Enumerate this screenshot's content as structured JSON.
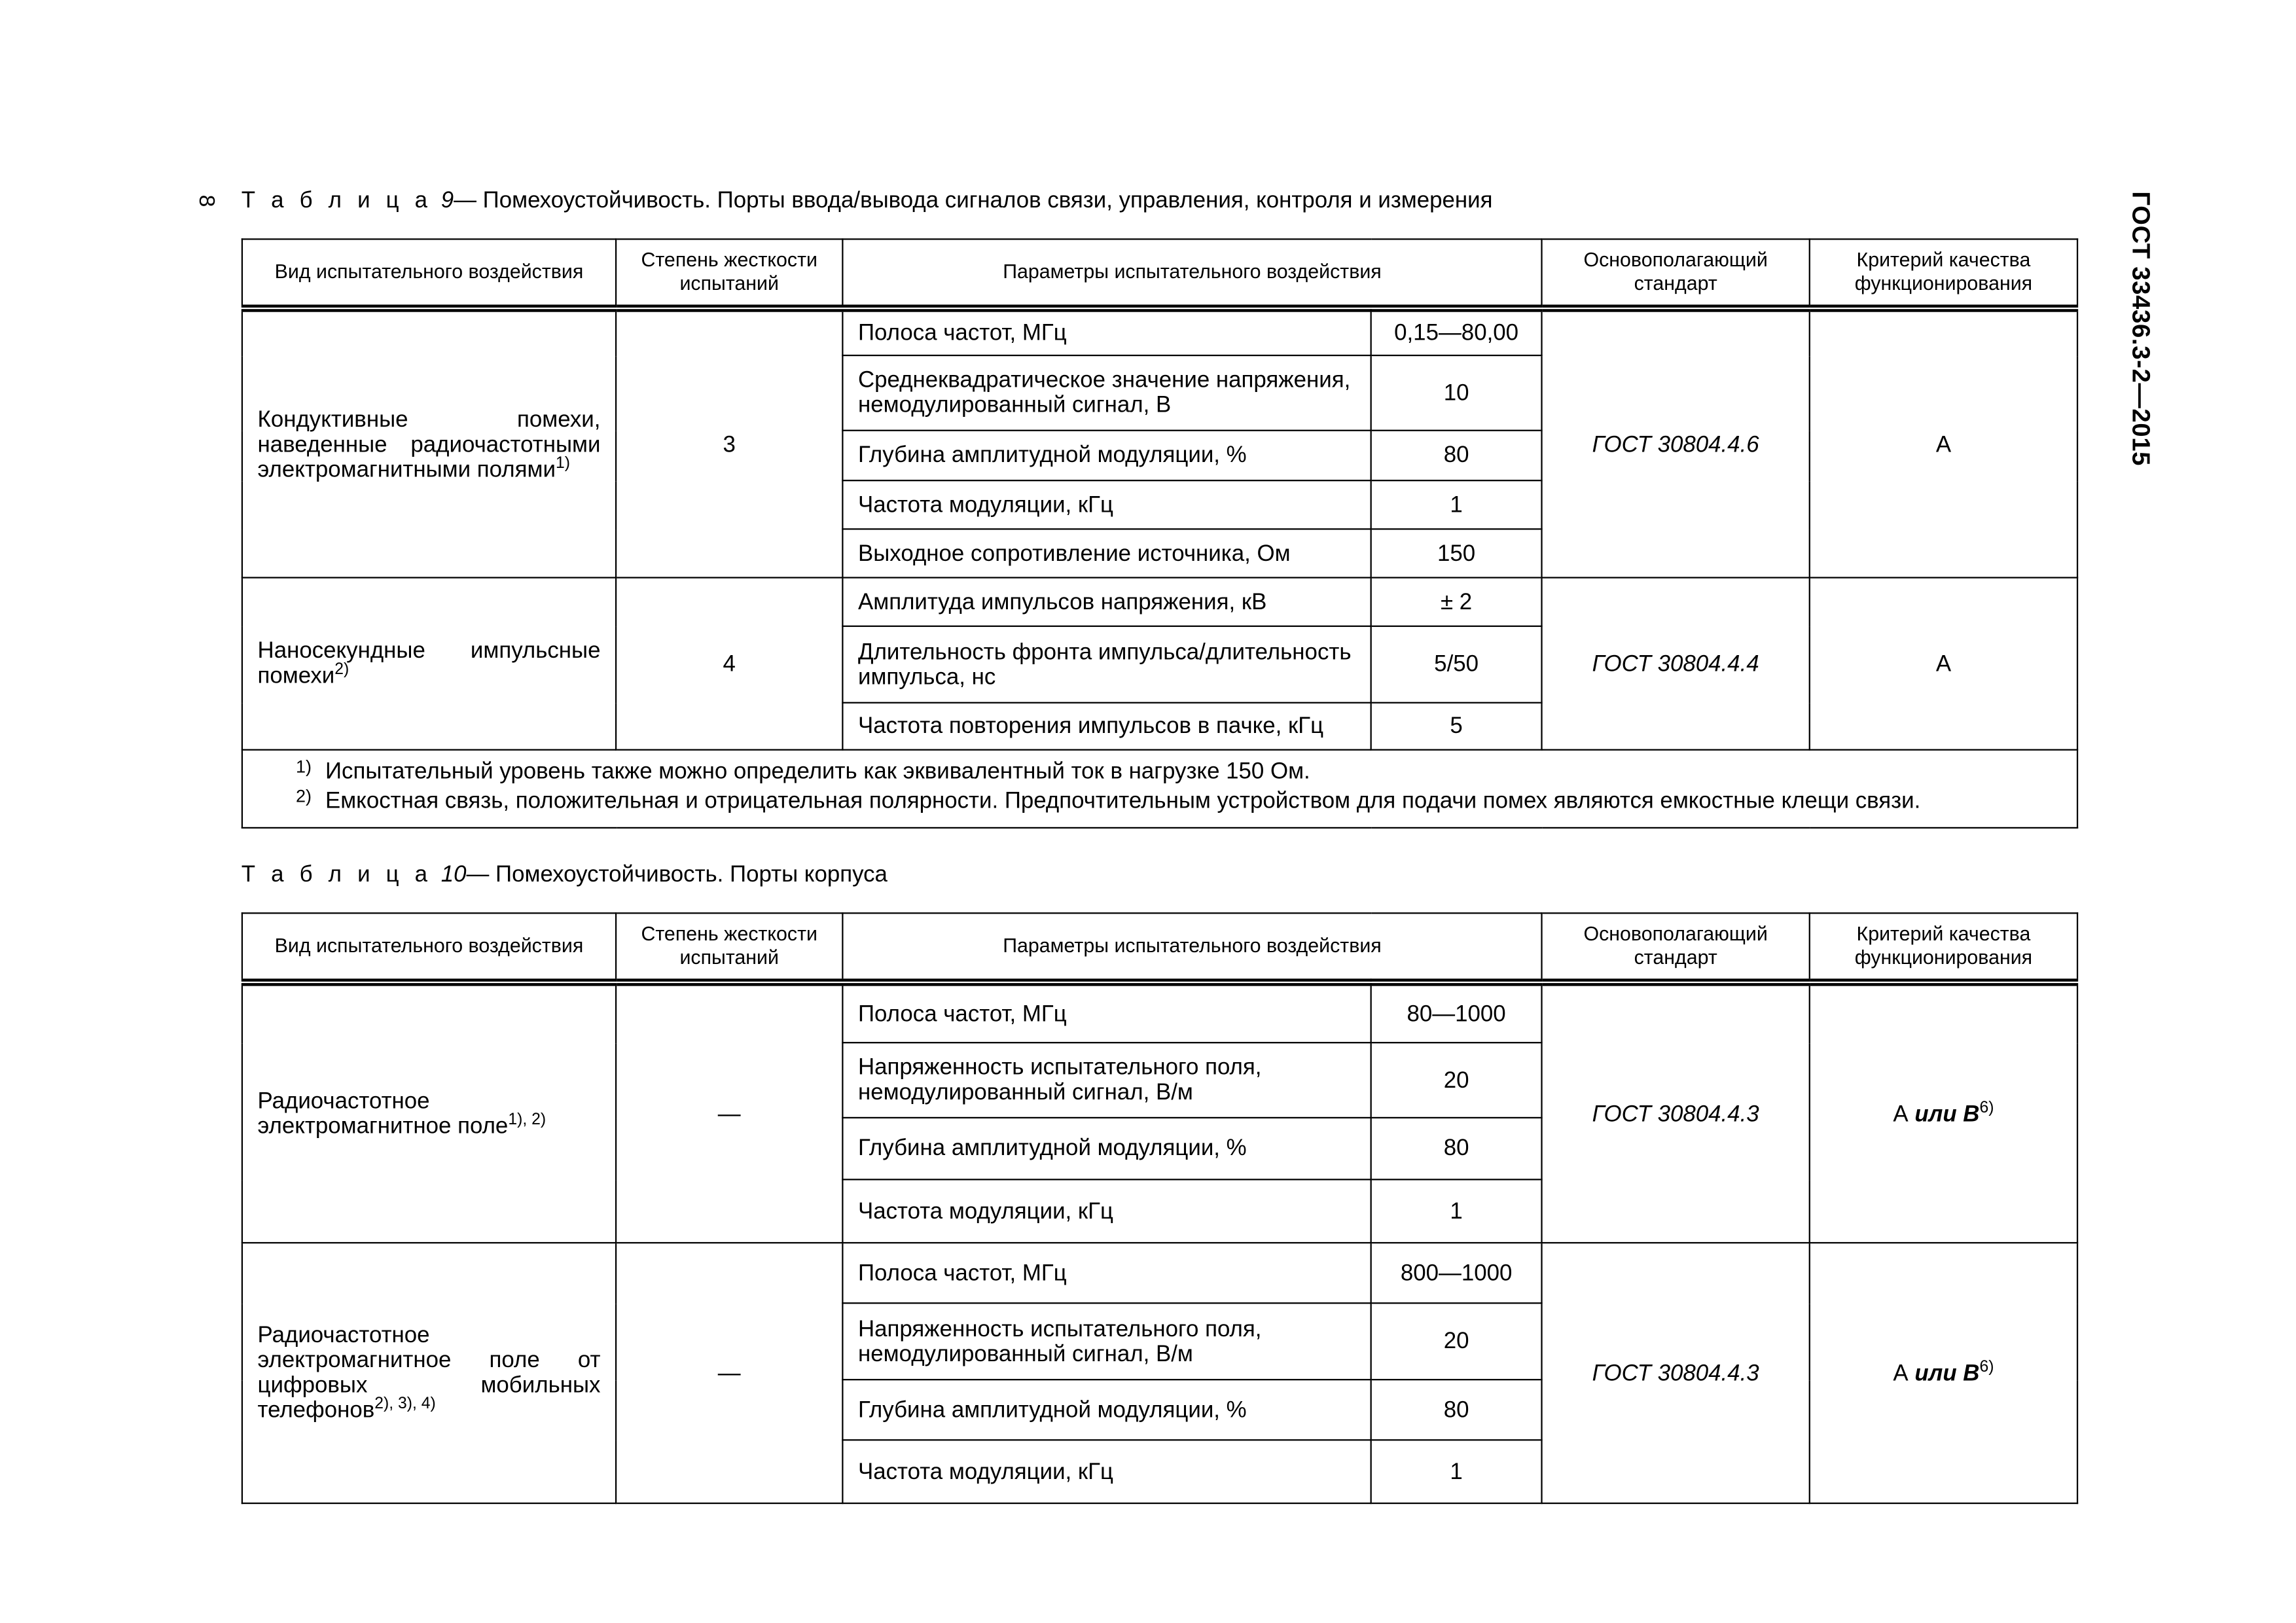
{
  "page": {
    "number": "8",
    "document_code": "ГОСТ 33436.3-2—2015"
  },
  "headers": {
    "effect": "Вид испытательного воздействия",
    "severity": "Степень жесткости испытаний",
    "params": "Параметры испытательного воздействия",
    "standard": "Основополагающий стандарт",
    "criterion": "Критерий качества функционирования"
  },
  "tables": [
    {
      "label": "Т а б л и ц а",
      "number": "9",
      "title": "— Помехоустойчивость. Порты ввода/вывода сигналов связи, управления, контроля и измерения",
      "groups": [
        {
          "effect": "Кондуктивные помехи, наведенные радиочастотными электромагнитными полями",
          "effect_sup": "1)",
          "severity": "3",
          "standard": "ГОСТ 30804.4.6",
          "criterion": "А",
          "criterion_alt": "",
          "criterion_sup": "",
          "params": [
            {
              "name": "Полоса частот, МГц",
              "value": "0,15—80,00"
            },
            {
              "name": "Среднеквадратическое значение напряжения, немодулированный сигнал, В",
              "value": "10"
            },
            {
              "name": "Глубина амплитудной модуляции, %",
              "value": "80"
            },
            {
              "name": "Частота модуляции, кГц",
              "value": "1"
            },
            {
              "name": "Выходное сопротивление источника, Ом",
              "value": "150"
            }
          ]
        },
        {
          "effect": "Наносекундные импульсные помехи",
          "effect_sup": "2)",
          "severity": "4",
          "standard": "ГОСТ 30804.4.4",
          "criterion": "А",
          "criterion_alt": "",
          "criterion_sup": "",
          "params": [
            {
              "name": "Амплитуда импульсов напряжения, кВ",
              "value": "± 2"
            },
            {
              "name": "Длительность фронта импульса/длительность импульса, нс",
              "value": "5/50"
            },
            {
              "name": "Частота повторения импульсов в пачке, кГц",
              "value": "5"
            }
          ]
        }
      ],
      "footnotes": [
        {
          "mark": "1)",
          "text": "Испытательный уровень также можно определить как эквивалентный ток в нагрузке 150 Ом."
        },
        {
          "mark": "2)",
          "text": "Емкостная связь, положительная и отрицательная полярности. Предпочтительным устройством для подачи помех являются емкостные клещи связи."
        }
      ]
    },
    {
      "label": "Т а б л и ц а",
      "number": "10",
      "title": "— Помехоустойчивость. Порты корпуса",
      "groups": [
        {
          "effect": "Радиочастотное электромагнитное поле",
          "effect_sup": "1), 2)",
          "severity": "—",
          "standard": "ГОСТ 30804.4.3",
          "criterion": "А",
          "criterion_alt": "или В",
          "criterion_sup": "6)",
          "params": [
            {
              "name": "Полоса частот, МГц",
              "value": "80—1000"
            },
            {
              "name": "Напряженность испытательного поля, немодулированный сигнал, В/м",
              "value": "20"
            },
            {
              "name": "Глубина амплитудной модуляции, %",
              "value": "80"
            },
            {
              "name": "Частота модуляции, кГц",
              "value": "1"
            }
          ]
        },
        {
          "effect": "Радиочастотное электромагнитное поле от цифровых мобильных телефонов",
          "effect_sup": "2), 3), 4)",
          "severity": "—",
          "standard": "ГОСТ 30804.4.3",
          "criterion": "А",
          "criterion_alt": "или В",
          "criterion_sup": "6)",
          "params": [
            {
              "name": "Полоса частот, МГц",
              "value": "800—1000"
            },
            {
              "name": "Напряженность испытательного поля, немодулированный сигнал, В/м",
              "value": "20"
            },
            {
              "name": "Глубина амплитудной модуляции, %",
              "value": "80"
            },
            {
              "name": "Частота модуляции, кГц",
              "value": "1"
            }
          ]
        }
      ],
      "footnotes": []
    }
  ]
}
